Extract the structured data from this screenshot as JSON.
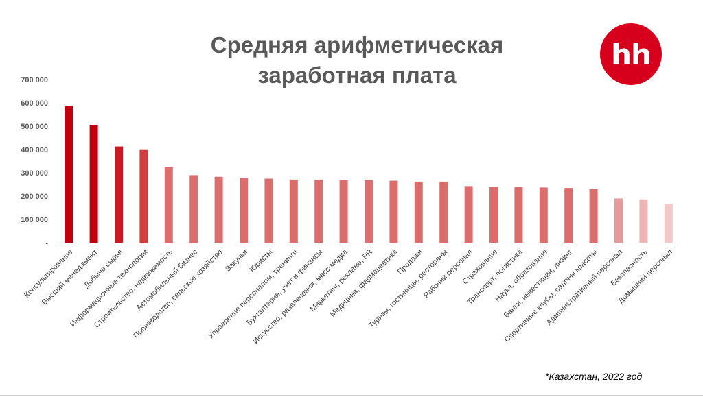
{
  "title_lines": [
    "Средняя арифметическая",
    "заработная плата"
  ],
  "logo_text": "hh",
  "footnote": "*Казахстан, 2022 год",
  "chart_data": {
    "type": "bar",
    "title": "Средняя арифметическая заработная плата",
    "ylim": [
      0,
      700000
    ],
    "yticks": [
      {
        "value": 0,
        "label": "-"
      },
      {
        "value": 100000,
        "label": "100 000"
      },
      {
        "value": 200000,
        "label": "200 000"
      },
      {
        "value": 300000,
        "label": "300 000"
      },
      {
        "value": 400000,
        "label": "400 000"
      },
      {
        "value": 500000,
        "label": "500 000"
      },
      {
        "value": 600000,
        "label": "600 000"
      },
      {
        "value": 700000,
        "label": "700 000"
      }
    ],
    "grid": false,
    "categories": [
      "Консультирование",
      "Высший менеджмент",
      "Добыча сырья",
      "Информационные технологии",
      "Строительство, недвижимость",
      "Автомобильный бизнес",
      "Производство, сельское хозяйство",
      "Закупки",
      "Юристы",
      "Управление персоналом, тренинги",
      "Бухгалтерия, учет и финансы",
      "Искусство, развлечения, масс-медиа",
      "Маркетинг, реклама, PR",
      "Медицина, фармацевтика",
      "Продажи",
      "Туризм, гостиницы, рестораны",
      "Рабочий персонал",
      "Страхование",
      "Транспорт, логистика",
      "Наука, образование",
      "Банки, инвестиции, лизинг",
      "Спортивные клубы, салоны красоты",
      "Административный персонал",
      "Безопасность",
      "Домашний персонал"
    ],
    "values": [
      587000,
      505000,
      413000,
      398000,
      324000,
      290000,
      283000,
      277000,
      275000,
      271000,
      270000,
      268000,
      268000,
      266000,
      262000,
      262000,
      243000,
      241000,
      240000,
      237000,
      235000,
      230000,
      190000,
      186000,
      167000
    ],
    "colors": [
      "#c0000f",
      "#c0000f",
      "#c81a22",
      "#d13d3d",
      "#dc6d6d",
      "#dc6d6d",
      "#dc6d6d",
      "#dc6d6d",
      "#dc6d6d",
      "#dc6d6d",
      "#dc6d6d",
      "#dc6d6d",
      "#dc6d6d",
      "#dc6d6d",
      "#dc6d6d",
      "#dc6d6d",
      "#dc6d6d",
      "#dc6d6d",
      "#dc6d6d",
      "#dc6d6d",
      "#dc6d6d",
      "#dc6d6d",
      "#e69a9a",
      "#efb5b5",
      "#f2c8c8"
    ]
  }
}
